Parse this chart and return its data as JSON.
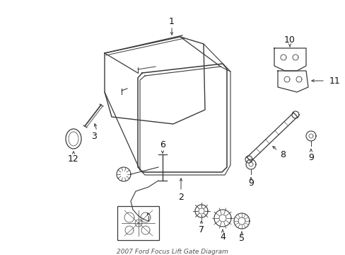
{
  "title": "2007 Ford Focus Lift Gate Diagram",
  "bg_color": "#ffffff",
  "line_color": "#3a3a3a",
  "label_color": "#111111",
  "figsize": [
    4.89,
    3.6
  ],
  "dpi": 100
}
